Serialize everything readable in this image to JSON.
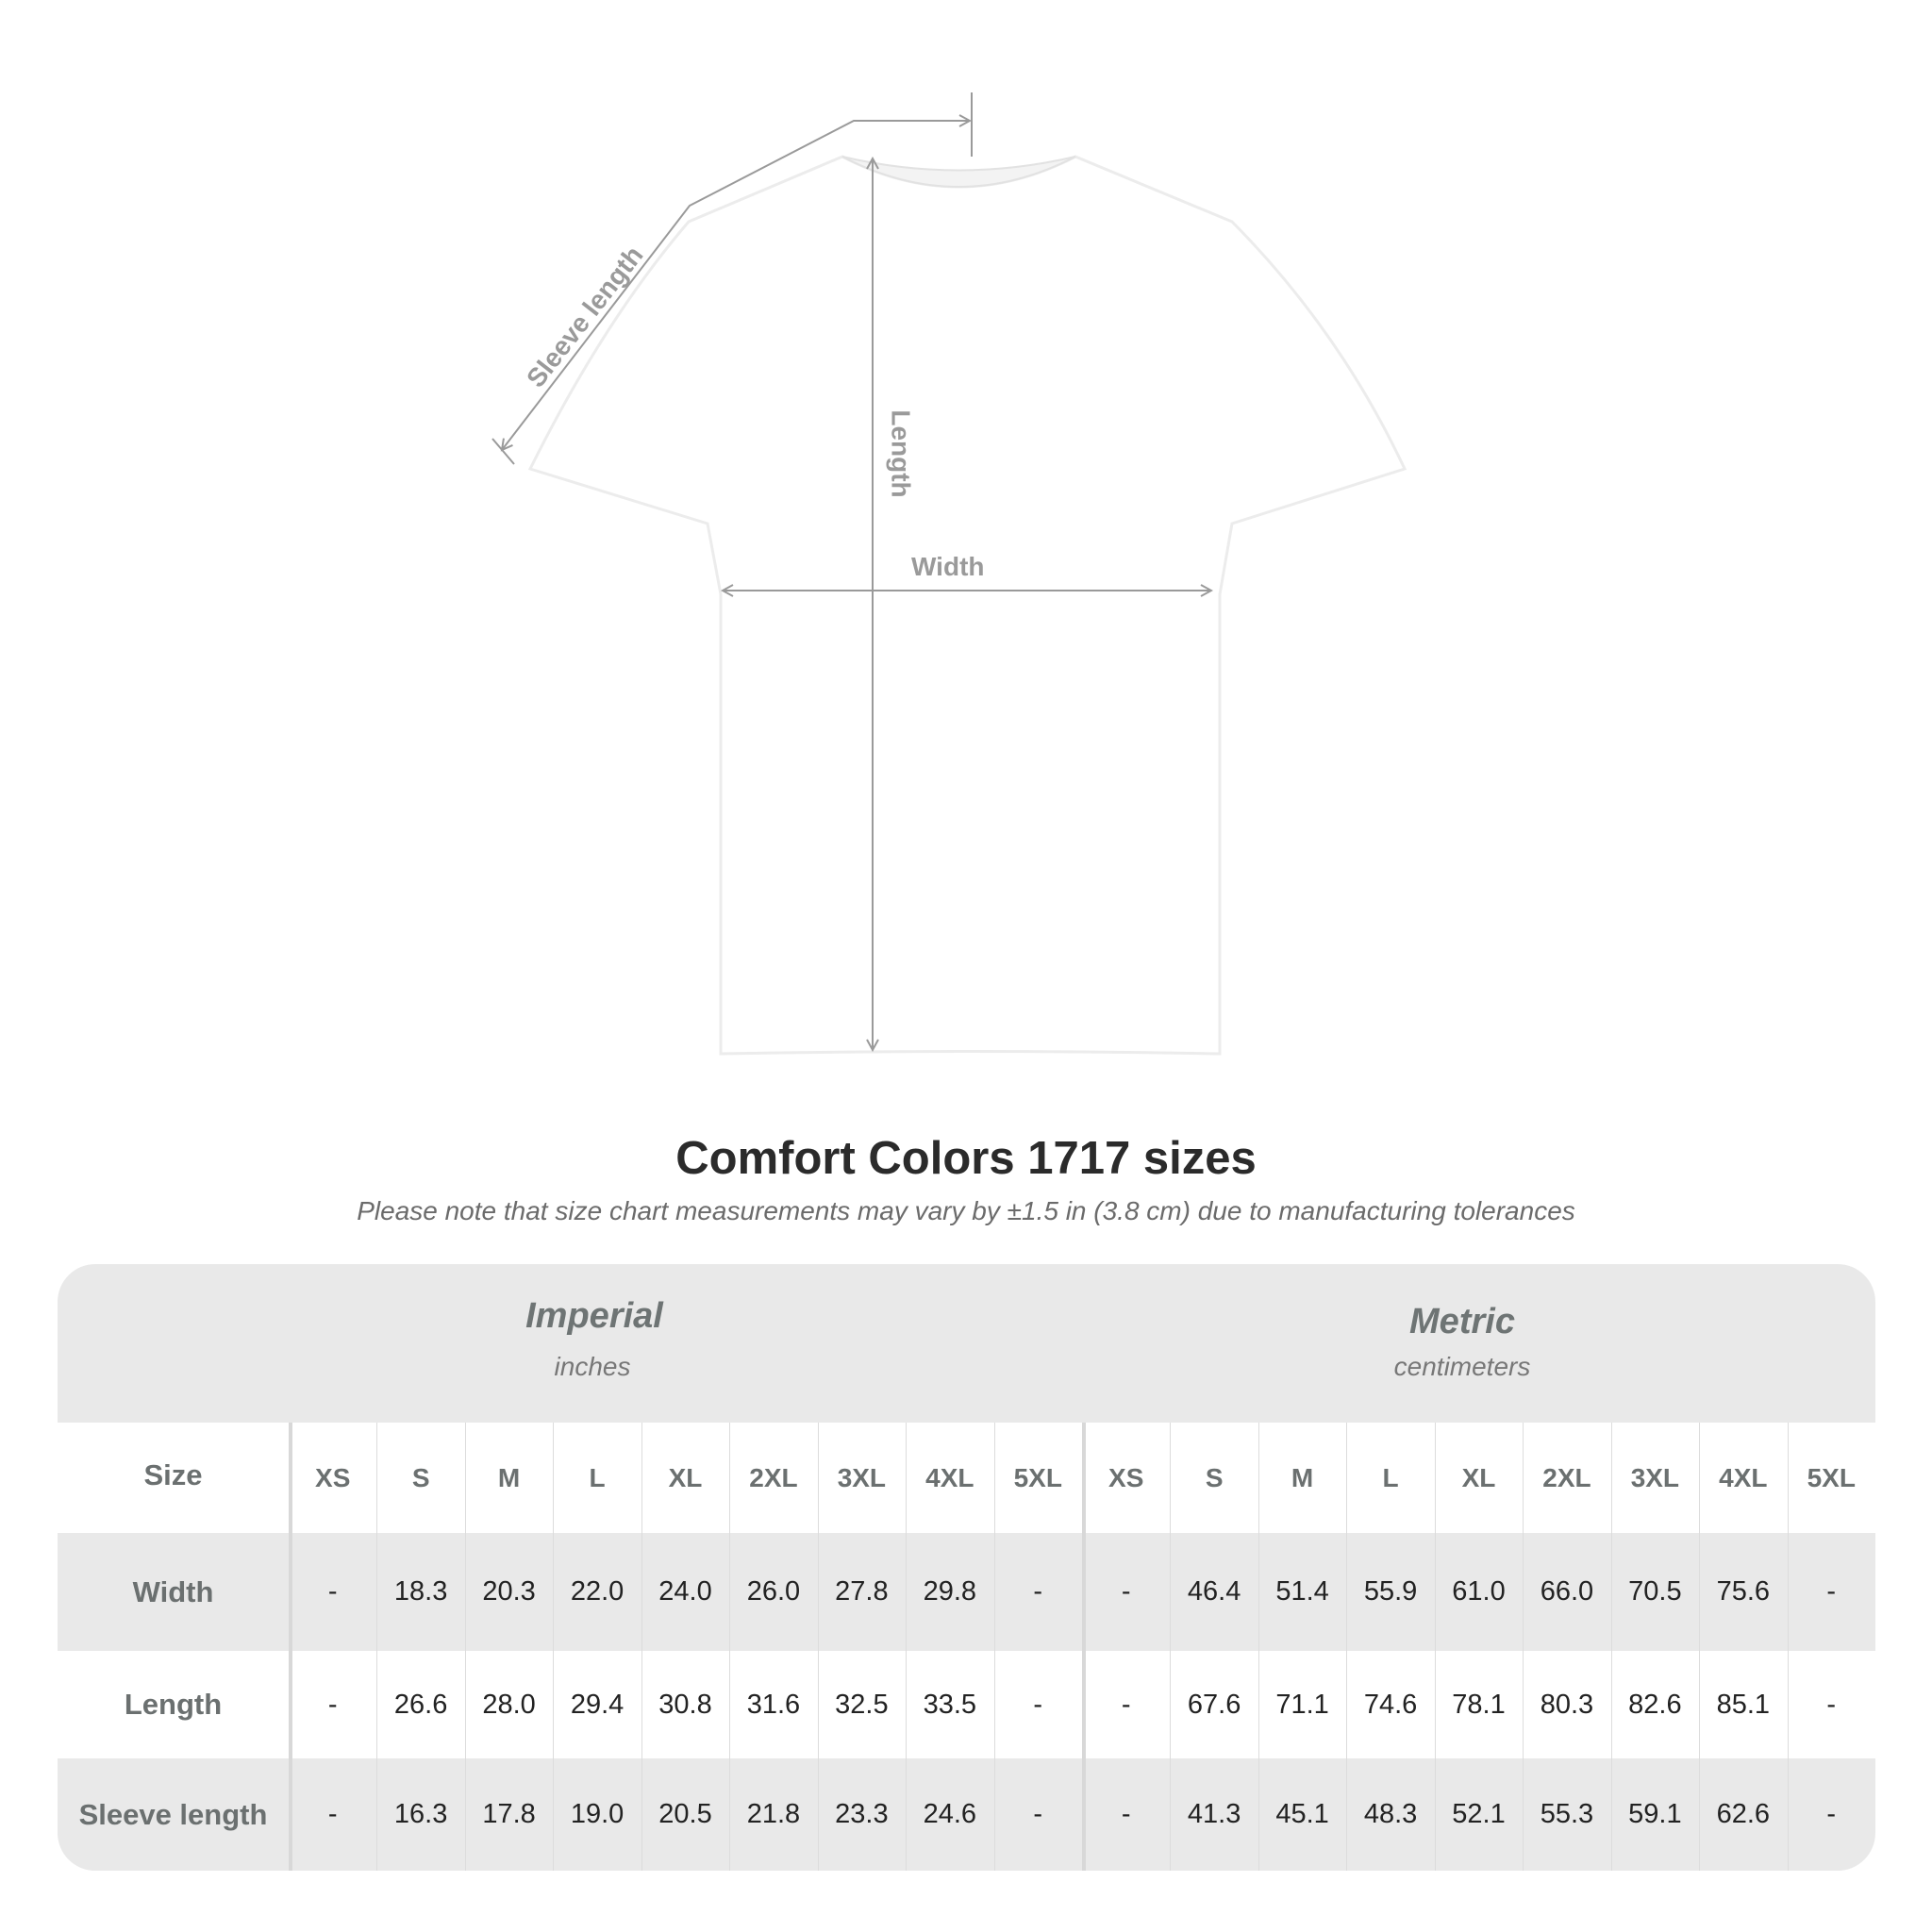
{
  "diagram": {
    "labels": {
      "sleeve": "Sleeve length",
      "length": "Length",
      "width": "Width"
    },
    "line_color": "#9a9a9a"
  },
  "header": {
    "title": "Comfort Colors 1717 sizes",
    "subtitle": "Please note that size chart measurements may vary by ±1.5 in (3.8 cm) due to manufacturing tolerances"
  },
  "table": {
    "imperial": {
      "title": "Imperial",
      "unit": "inches"
    },
    "metric": {
      "title": "Metric",
      "unit": "centimeters"
    },
    "size_label": "Size",
    "sizes": [
      "XS",
      "S",
      "M",
      "L",
      "XL",
      "2XL",
      "3XL",
      "4XL",
      "5XL"
    ],
    "rows": [
      {
        "label": "Width",
        "imperial": [
          "-",
          "18.3",
          "20.3",
          "22.0",
          "24.0",
          "26.0",
          "27.8",
          "29.8",
          "-"
        ],
        "metric": [
          "-",
          "46.4",
          "51.4",
          "55.9",
          "61.0",
          "66.0",
          "70.5",
          "75.6",
          "-"
        ]
      },
      {
        "label": "Length",
        "imperial": [
          "-",
          "26.6",
          "28.0",
          "29.4",
          "30.8",
          "31.6",
          "32.5",
          "33.5",
          "-"
        ],
        "metric": [
          "-",
          "67.6",
          "71.1",
          "74.6",
          "78.1",
          "80.3",
          "82.6",
          "85.1",
          "-"
        ]
      },
      {
        "label": "Sleeve length",
        "imperial": [
          "-",
          "16.3",
          "17.8",
          "19.0",
          "20.5",
          "21.8",
          "23.3",
          "24.6",
          "-"
        ],
        "metric": [
          "-",
          "41.3",
          "45.1",
          "48.3",
          "52.1",
          "55.3",
          "59.1",
          "62.6",
          "-"
        ]
      }
    ],
    "band_color": "#e9e9e9"
  }
}
